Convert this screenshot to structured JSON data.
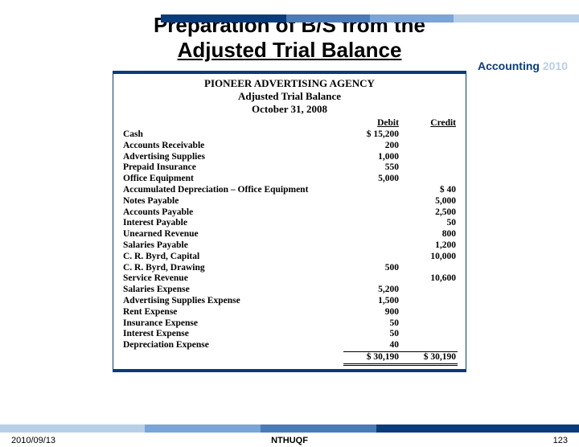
{
  "title": {
    "line1": "Preparation of B/S from the",
    "line2": "Adjusted Trial Balance"
  },
  "brand": {
    "part1": "Accounting",
    "part2": " 2010"
  },
  "trial_balance": {
    "company": "PIONEER ADVERTISING AGENCY",
    "statement": "Adjusted Trial Balance",
    "date": "October 31, 2008",
    "col_debit": "Debit",
    "col_credit": "Credit",
    "rows": [
      {
        "name": "Cash",
        "debit": "$ 15,200",
        "credit": ""
      },
      {
        "name": "Accounts Receivable",
        "debit": "200",
        "credit": ""
      },
      {
        "name": "Advertising Supplies",
        "debit": "1,000",
        "credit": ""
      },
      {
        "name": "Prepaid Insurance",
        "debit": "550",
        "credit": ""
      },
      {
        "name": "Office Equipment",
        "debit": "5,000",
        "credit": ""
      },
      {
        "name": "Accumulated Depreciation – Office Equipment",
        "debit": "",
        "credit": "$       40"
      },
      {
        "name": "Notes Payable",
        "debit": "",
        "credit": "5,000"
      },
      {
        "name": "Accounts Payable",
        "debit": "",
        "credit": "2,500"
      },
      {
        "name": "Interest Payable",
        "debit": "",
        "credit": "50"
      },
      {
        "name": "Unearned Revenue",
        "debit": "",
        "credit": "800"
      },
      {
        "name": "Salaries Payable",
        "debit": "",
        "credit": "1,200"
      },
      {
        "name": "C. R. Byrd, Capital",
        "debit": "",
        "credit": "10,000"
      },
      {
        "name": "C. R. Byrd, Drawing",
        "debit": "500",
        "credit": ""
      },
      {
        "name": "Service Revenue",
        "debit": "",
        "credit": "10,600"
      },
      {
        "name": "Salaries Expense",
        "debit": "5,200",
        "credit": ""
      },
      {
        "name": "Advertising Supplies Expense",
        "debit": "1,500",
        "credit": ""
      },
      {
        "name": "Rent Expense",
        "debit": "900",
        "credit": ""
      },
      {
        "name": "Insurance Expense",
        "debit": "50",
        "credit": ""
      },
      {
        "name": "Interest Expense",
        "debit": "50",
        "credit": ""
      },
      {
        "name": "Depreciation Expense",
        "debit": "40",
        "credit": ""
      }
    ],
    "total_debit": "$ 30,190",
    "total_credit": "$ 30,190"
  },
  "footer": {
    "date": "2010/09/13",
    "mid": "NTHUQF",
    "page": "123"
  },
  "colors": {
    "navy": "#0a3b7a",
    "light": "#b8cfe8"
  }
}
